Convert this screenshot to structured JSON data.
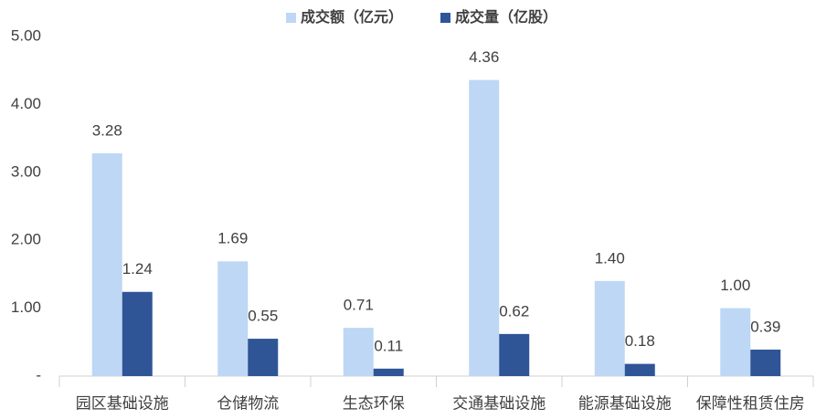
{
  "chart_data": {
    "type": "bar",
    "categories": [
      "园区基础设施",
      "仓储物流",
      "生态环保",
      "交通基础设施",
      "能源基础设施",
      "保障性租赁住房"
    ],
    "series": [
      {
        "name": "成交额（亿元）",
        "color": "#bdd7f5",
        "values": [
          3.28,
          1.69,
          0.71,
          4.36,
          1.4,
          1.0
        ],
        "value_labels": [
          "3.28",
          "1.69",
          "0.71",
          "4.36",
          "1.40",
          "1.00"
        ]
      },
      {
        "name": "成交量（亿股）",
        "color": "#2f5597",
        "values": [
          1.24,
          0.55,
          0.11,
          0.62,
          0.18,
          0.39
        ],
        "value_labels": [
          "1.24",
          "0.55",
          "0.11",
          "0.62",
          "0.18",
          "0.39"
        ]
      }
    ],
    "ylim": [
      0,
      5
    ],
    "yticks": [
      {
        "value": 0,
        "label": "-"
      },
      {
        "value": 1,
        "label": "1.00"
      },
      {
        "value": 2,
        "label": "2.00"
      },
      {
        "value": 3,
        "label": "3.00"
      },
      {
        "value": 4,
        "label": "4.00"
      },
      {
        "value": 5,
        "label": "5.00"
      }
    ],
    "legend": "top",
    "grid": false
  }
}
